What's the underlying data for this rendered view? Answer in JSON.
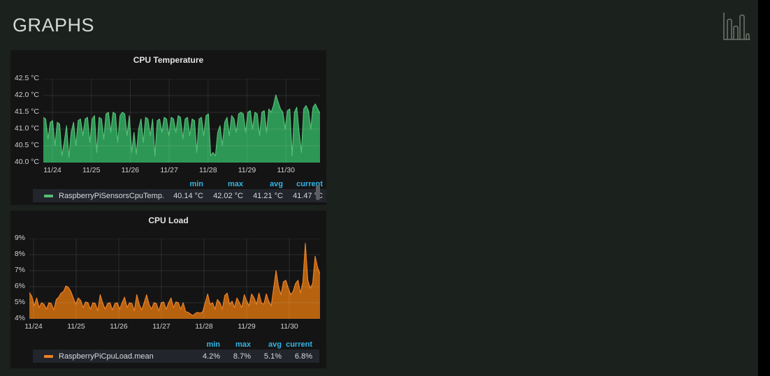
{
  "header": {
    "title": "GRAPHS",
    "icon": "bar-chart"
  },
  "page": {
    "background": "#1b211c",
    "panel_background": "#141415",
    "right_strip_color": "#000000",
    "legend_header_color": "#33b5e5"
  },
  "chart_data": [
    {
      "type": "area",
      "title": "CPU Temperature",
      "ylabel": "",
      "xlabel": "",
      "ylim": [
        40.0,
        42.5
      ],
      "grid": true,
      "legend_position": "bottom",
      "yticks": [
        "42.5 °C",
        "42.0 °C",
        "41.5 °C",
        "41.0 °C",
        "40.5 °C",
        "40.0 °C"
      ],
      "xticks": [
        "11/24",
        "11/25",
        "11/26",
        "11/27",
        "11/28",
        "11/29",
        "11/30"
      ],
      "series": [
        {
          "name": "RaspberryPiSensorsCpuTemp.mean",
          "color": "#56bd76",
          "fill_color": "#2e9e58",
          "values": [
            41.35,
            41.3,
            40.7,
            41.2,
            41.25,
            40.5,
            41.2,
            41.15,
            40.2,
            40.6,
            41.1,
            40.15,
            40.9,
            41.2,
            40.5,
            41.25,
            41.3,
            40.8,
            41.3,
            41.35,
            40.6,
            41.3,
            41.4,
            40.3,
            41.35,
            41.3,
            40.7,
            41.45,
            41.5,
            40.9,
            41.5,
            41.45,
            40.6,
            41.4,
            41.5,
            41.45,
            40.8,
            41.4,
            40.3,
            40.9,
            40.25,
            41.0,
            41.3,
            40.6,
            41.35,
            41.3,
            40.8,
            41.3,
            40.2,
            41.25,
            41.3,
            40.9,
            41.35,
            41.3,
            40.8,
            41.35,
            41.3,
            40.9,
            41.4,
            41.35,
            40.7,
            41.3,
            41.35,
            40.8,
            41.3,
            41.25,
            40.3,
            41.3,
            41.35,
            40.8,
            41.4,
            41.45,
            40.2,
            40.3,
            40.2,
            40.9,
            41.1,
            40.5,
            41.2,
            41.35,
            40.8,
            41.4,
            41.3,
            40.9,
            41.45,
            41.5,
            41.45,
            40.9,
            41.5,
            41.55,
            41.0,
            41.5,
            41.45,
            40.8,
            41.5,
            41.55,
            40.9,
            41.6,
            41.5,
            41.7,
            42.02,
            41.8,
            41.6,
            41.5,
            41.0,
            41.55,
            41.6,
            40.2,
            41.5,
            41.65,
            40.9,
            40.3,
            41.6,
            41.7,
            41.55,
            41.0,
            41.65,
            41.75,
            41.6,
            41.47
          ]
        }
      ],
      "legend": {
        "headers": [
          "min",
          "max",
          "avg",
          "current"
        ],
        "rows": [
          {
            "name": "RaspberryPiSensorsCpuTemp.mean",
            "min": "40.14 °C",
            "max": "42.02 °C",
            "avg": "41.21 °C",
            "current": "41.47 °C"
          }
        ]
      }
    },
    {
      "type": "area",
      "title": "CPU Load",
      "ylabel": "",
      "xlabel": "",
      "ylim": [
        4,
        9
      ],
      "grid": true,
      "legend_position": "bottom",
      "yticks": [
        "9%",
        "8%",
        "7%",
        "6%",
        "5%",
        "4%"
      ],
      "xticks": [
        "11/24",
        "11/25",
        "11/26",
        "11/27",
        "11/28",
        "11/29",
        "11/30"
      ],
      "series": [
        {
          "name": "RaspberryPiCpuLoad.mean",
          "color": "#ec8026",
          "fill_color": "#bf660f",
          "values": [
            5.65,
            5.4,
            4.8,
            5.3,
            4.7,
            5.0,
            4.9,
            4.6,
            5.0,
            4.95,
            4.55,
            5.2,
            5.35,
            5.6,
            5.7,
            6.05,
            5.95,
            5.7,
            5.3,
            4.9,
            5.3,
            5.15,
            4.7,
            5.05,
            5.0,
            4.6,
            5.0,
            4.95,
            4.5,
            5.5,
            5.0,
            4.6,
            4.95,
            5.0,
            4.55,
            4.95,
            5.0,
            4.6,
            5.0,
            5.35,
            4.7,
            5.0,
            4.95,
            4.5,
            5.5,
            4.9,
            4.55,
            5.0,
            5.5,
            4.9,
            4.6,
            5.0,
            4.95,
            4.5,
            5.0,
            5.05,
            4.6,
            5.0,
            5.3,
            4.7,
            5.05,
            5.0,
            4.6,
            5.0,
            4.45,
            4.4,
            4.3,
            4.2,
            4.35,
            4.4,
            4.35,
            4.45,
            5.0,
            5.55,
            4.9,
            5.0,
            4.6,
            5.2,
            5.0,
            4.6,
            5.45,
            5.6,
            4.9,
            5.1,
            4.7,
            5.3,
            5.0,
            4.7,
            5.5,
            5.1,
            4.8,
            5.55,
            5.3,
            4.9,
            5.6,
            5.0,
            4.9,
            5.55,
            5.1,
            4.8,
            5.9,
            7.0,
            6.0,
            5.5,
            6.3,
            6.4,
            5.9,
            5.5,
            5.7,
            6.2,
            6.4,
            5.6,
            6.3,
            8.7,
            6.4,
            5.9,
            6.2,
            7.9,
            7.2,
            6.8
          ]
        }
      ],
      "legend": {
        "headers": [
          "min",
          "max",
          "avg",
          "current"
        ],
        "rows": [
          {
            "name": "RaspberryPiCpuLoad.mean",
            "min": "4.2%",
            "max": "8.7%",
            "avg": "5.1%",
            "current": "6.8%"
          }
        ]
      }
    }
  ]
}
